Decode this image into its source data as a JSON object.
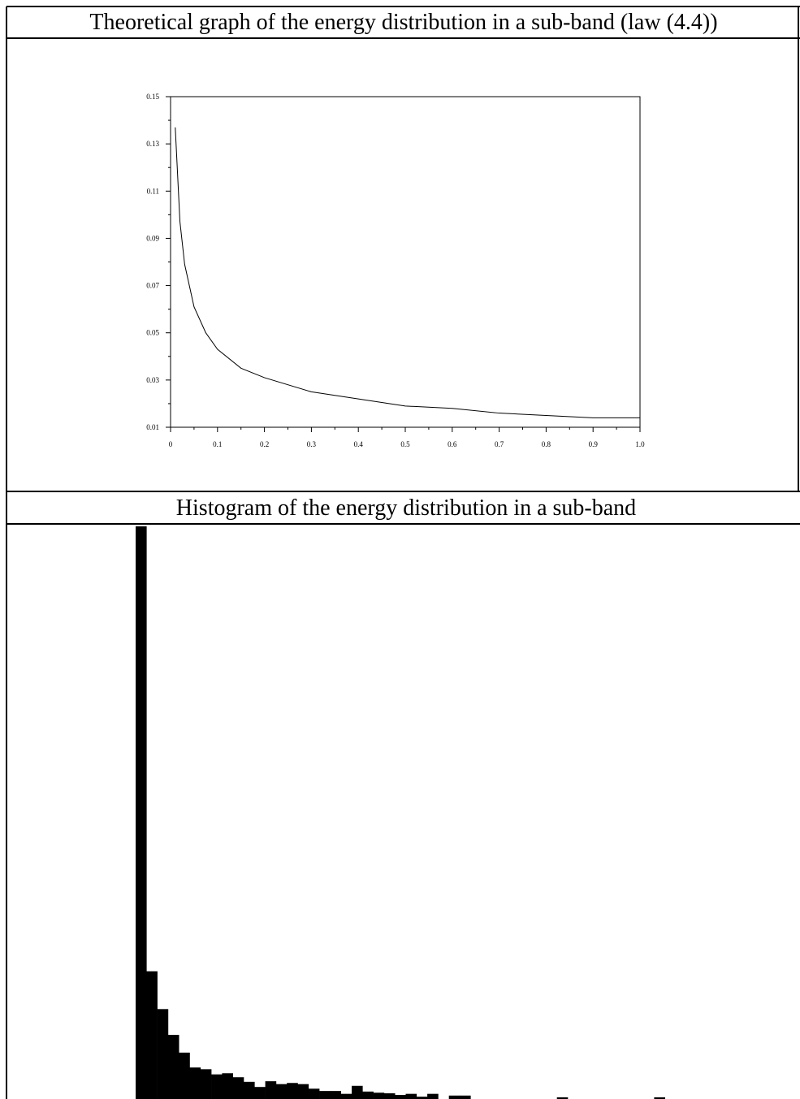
{
  "chart_data": [
    {
      "type": "line",
      "title": "Theoretical graph of the energy distribution in a sub-band (law (4.4))",
      "x": [
        0.01,
        0.02,
        0.03,
        0.05,
        0.075,
        0.1,
        0.15,
        0.2,
        0.3,
        0.4,
        0.5,
        0.6,
        0.7,
        0.8,
        0.9,
        1.0
      ],
      "values": [
        0.137,
        0.097,
        0.079,
        0.061,
        0.05,
        0.043,
        0.035,
        0.031,
        0.025,
        0.022,
        0.019,
        0.018,
        0.016,
        0.015,
        0.014,
        0.014
      ],
      "color": "#000000",
      "xlim": [
        0,
        1
      ],
      "xticks": [
        0,
        0.1,
        0.2,
        0.3,
        0.4,
        0.5,
        0.6,
        0.7,
        0.8,
        0.9,
        {
          "value": 1,
          "label": "1.0"
        }
      ],
      "ylim": [
        0.01,
        0.15
      ],
      "yticks": [
        0.01,
        0.03,
        0.05,
        0.07,
        0.09,
        0.11,
        0.13,
        0.15
      ]
    },
    {
      "type": "histogram",
      "title": "Histogram of the energy distribution in a sub-band",
      "bins": [
        0,
        0.02,
        0.04,
        0.06,
        0.08,
        0.1,
        0.12,
        0.14,
        0.16,
        0.18,
        0.2,
        0.22,
        0.24,
        0.26,
        0.28,
        0.3,
        0.32,
        0.34,
        0.36,
        0.38,
        0.4,
        0.42,
        0.44,
        0.46,
        0.48,
        0.5,
        0.52,
        0.54,
        0.56,
        0.58,
        0.6,
        0.62,
        0.64,
        0.66,
        0.68,
        0.7,
        0.72,
        0.74,
        0.76,
        0.78,
        0.8,
        0.82,
        0.84,
        0.86,
        0.88,
        0.9,
        0.92,
        0.94,
        0.96,
        0.98,
        1.0
      ],
      "values": [
        100,
        22.3,
        15.7,
        11.2,
        8.1,
        5.5,
        5.2,
        4.3,
        4.5,
        3.8,
        3.0,
        2.1,
        3.1,
        2.6,
        2.8,
        2.6,
        1.8,
        1.4,
        1.4,
        0.9,
        2.3,
        1.3,
        1.1,
        1.0,
        0.7,
        0.9,
        0.4,
        0.9,
        0,
        0.6,
        0.6,
        0,
        0,
        0,
        0,
        0,
        0,
        0,
        0,
        0.3,
        0,
        0,
        0,
        0,
        0,
        0,
        0,
        0,
        0.3,
        0
      ],
      "color": "#000000",
      "xlim": [
        0,
        1
      ],
      "ylim": [
        0,
        100
      ]
    }
  ]
}
